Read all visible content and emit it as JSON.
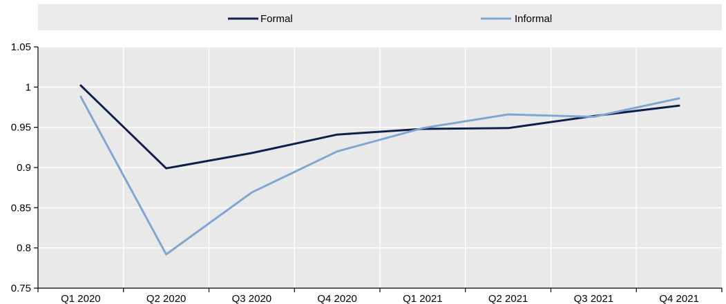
{
  "chart_data": {
    "type": "line",
    "title": "",
    "xlabel": "",
    "ylabel": "",
    "categories": [
      "Q1 2020",
      "Q2 2020",
      "Q3 2020",
      "Q4 2020",
      "Q1 2021",
      "Q2 2021",
      "Q3 2021",
      "Q4 2021"
    ],
    "series": [
      {
        "name": "Formal",
        "color": "#0d1f4d",
        "values": [
          1.002,
          0.899,
          0.918,
          0.941,
          0.948,
          0.949,
          0.964,
          0.977
        ]
      },
      {
        "name": "Informal",
        "color": "#7fa6d3",
        "values": [
          0.988,
          0.792,
          0.869,
          0.92,
          0.949,
          0.966,
          0.963,
          0.986
        ]
      }
    ],
    "ylim": [
      0.75,
      1.05
    ],
    "yticks": [
      0.75,
      0.8,
      0.85,
      0.9,
      0.95,
      1,
      1.05
    ],
    "ytick_labels": [
      "0.75",
      "0.8",
      "0.85",
      "0.9",
      "0.95",
      "1",
      "1.05"
    ],
    "grid": true,
    "legend_position": "top"
  }
}
